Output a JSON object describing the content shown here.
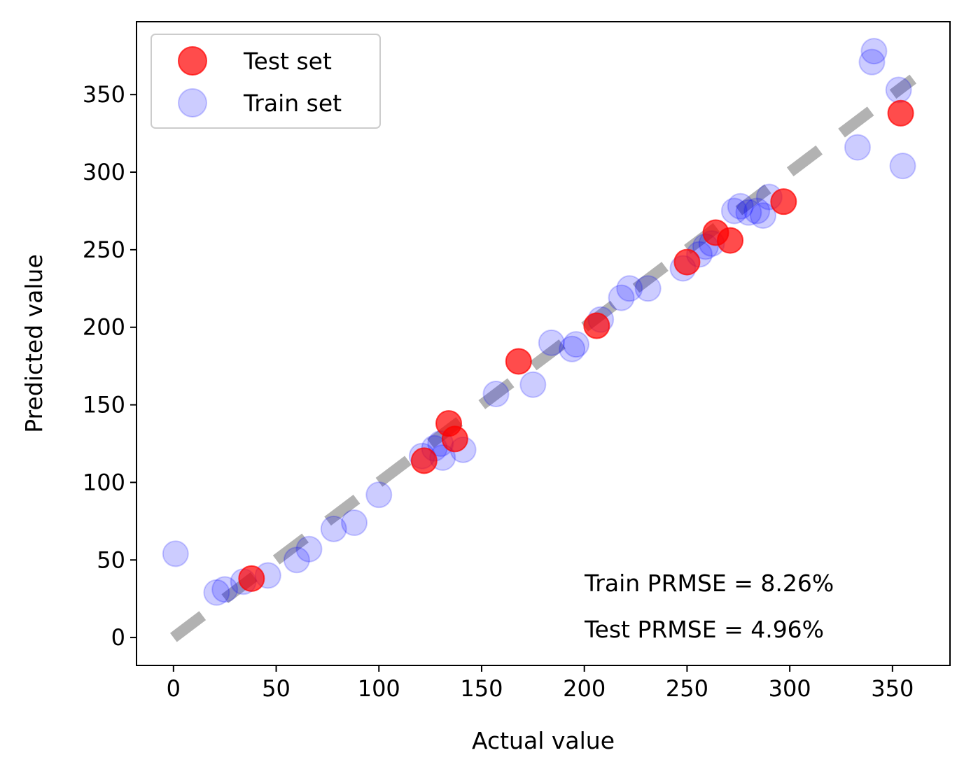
{
  "chart_data": {
    "type": "scatter",
    "xlabel": "Actual value",
    "ylabel": "Predicted value",
    "xlim": [
      -18,
      378
    ],
    "ylim": [
      -18,
      397
    ],
    "xticks": [
      0,
      50,
      100,
      150,
      200,
      250,
      300,
      350
    ],
    "yticks": [
      0,
      50,
      100,
      150,
      200,
      250,
      300,
      350
    ],
    "grid": false,
    "legend_position": "top-left",
    "reference_line": {
      "x": [
        0,
        360
      ],
      "y": [
        0,
        360
      ],
      "style": "dashed",
      "color": "#7f7f7f"
    },
    "series": [
      {
        "name": "Test set",
        "color": "#ff0000",
        "points": [
          [
            38,
            38
          ],
          [
            122,
            114
          ],
          [
            134,
            138
          ],
          [
            137,
            128
          ],
          [
            168,
            178
          ],
          [
            206,
            201
          ],
          [
            250,
            242
          ],
          [
            264,
            261
          ],
          [
            271,
            256
          ],
          [
            297,
            281
          ],
          [
            354,
            338
          ]
        ]
      },
      {
        "name": "Train set",
        "color": "#0000ff",
        "points": [
          [
            1,
            54
          ],
          [
            21,
            29
          ],
          [
            25,
            31
          ],
          [
            34,
            36
          ],
          [
            46,
            40
          ],
          [
            60,
            50
          ],
          [
            66,
            57
          ],
          [
            78,
            70
          ],
          [
            88,
            74
          ],
          [
            100,
            92
          ],
          [
            121,
            117
          ],
          [
            127,
            122
          ],
          [
            130,
            125
          ],
          [
            131,
            116
          ],
          [
            141,
            121
          ],
          [
            157,
            157
          ],
          [
            175,
            163
          ],
          [
            184,
            190
          ],
          [
            194,
            186
          ],
          [
            196,
            189
          ],
          [
            208,
            205
          ],
          [
            218,
            219
          ],
          [
            222,
            225
          ],
          [
            231,
            225
          ],
          [
            248,
            238
          ],
          [
            256,
            247
          ],
          [
            259,
            252
          ],
          [
            262,
            254
          ],
          [
            273,
            275
          ],
          [
            276,
            278
          ],
          [
            280,
            274
          ],
          [
            284,
            275
          ],
          [
            287,
            272
          ],
          [
            290,
            284
          ],
          [
            333,
            316
          ],
          [
            340,
            371
          ],
          [
            341,
            378
          ],
          [
            353,
            353
          ],
          [
            355,
            304
          ]
        ]
      }
    ],
    "annotations": [
      "Train PRMSE = 8.26%",
      "Test PRMSE = 4.96%"
    ]
  }
}
